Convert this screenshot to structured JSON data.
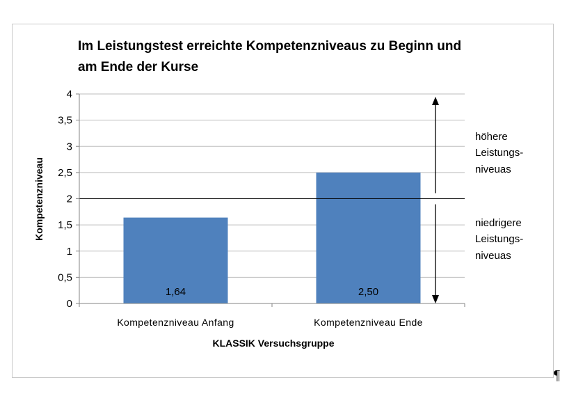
{
  "chart_data": {
    "type": "bar",
    "title_lines": [
      "Im Leistungstest erreichte Kompetenzniveaus zu Beginn und",
      "am Ende der Kurse"
    ],
    "categories": [
      "Kompetenzniveau Anfang",
      "Kompetenzniveau Ende"
    ],
    "values": [
      1.64,
      2.5
    ],
    "value_labels": [
      "1,64",
      "2,50"
    ],
    "xlabel": "KLASSIK  Versuchsgruppe",
    "ylabel": "Kompetenzniveau",
    "ylim": [
      0,
      4
    ],
    "yticks": [
      0,
      0.5,
      1,
      1.5,
      2,
      2.5,
      3,
      3.5,
      4
    ],
    "ytick_labels": [
      "0",
      "0,5",
      "1",
      "1,5",
      "2",
      "2,5",
      "3",
      "3,5",
      "4"
    ],
    "grid": true,
    "bar_color": "#4f81bd",
    "reference_line_value": 2,
    "annotations": {
      "upper_lines": [
        "höhere",
        "Leistungs-",
        "niveuas"
      ],
      "lower_lines": [
        "niedrigere",
        "Leistungs-",
        "niveuas"
      ]
    }
  },
  "page": {
    "pilcrow": "¶"
  }
}
